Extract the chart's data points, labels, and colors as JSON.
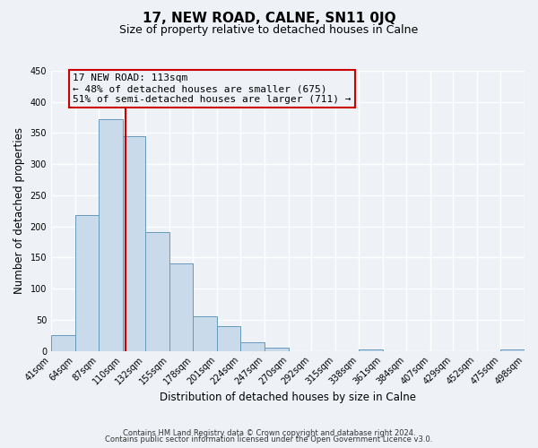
{
  "title": "17, NEW ROAD, CALNE, SN11 0JQ",
  "subtitle": "Size of property relative to detached houses in Calne",
  "xlabel": "Distribution of detached houses by size in Calne",
  "ylabel": "Number of detached properties",
  "bin_edges": [
    41,
    64,
    87,
    110,
    132,
    155,
    178,
    201,
    224,
    247,
    270,
    292,
    315,
    338,
    361,
    384,
    407,
    429,
    452,
    475,
    498
  ],
  "bar_heights": [
    25,
    218,
    372,
    345,
    191,
    141,
    55,
    40,
    14,
    6,
    0,
    0,
    0,
    2,
    0,
    0,
    0,
    0,
    0,
    2
  ],
  "bar_color": "#c9daea",
  "bar_edge_color": "#6699bb",
  "property_size": 113,
  "vline_color": "#cc0000",
  "annotation_line1": "17 NEW ROAD: 113sqm",
  "annotation_line2": "← 48% of detached houses are smaller (675)",
  "annotation_line3": "51% of semi-detached houses are larger (711) →",
  "annotation_box_edge": "#cc0000",
  "ylim": [
    0,
    450
  ],
  "yticks": [
    0,
    50,
    100,
    150,
    200,
    250,
    300,
    350,
    400,
    450
  ],
  "tick_labels": [
    "41sqm",
    "64sqm",
    "87sqm",
    "110sqm",
    "132sqm",
    "155sqm",
    "178sqm",
    "201sqm",
    "224sqm",
    "247sqm",
    "270sqm",
    "292sqm",
    "315sqm",
    "338sqm",
    "361sqm",
    "384sqm",
    "407sqm",
    "429sqm",
    "452sqm",
    "475sqm",
    "498sqm"
  ],
  "footer1": "Contains HM Land Registry data © Crown copyright and database right 2024.",
  "footer2": "Contains public sector information licensed under the Open Government Licence v3.0.",
  "background_color": "#eef2f7",
  "grid_color": "#ffffff",
  "title_fontsize": 11,
  "subtitle_fontsize": 9,
  "label_fontsize": 8.5,
  "tick_fontsize": 7,
  "annotation_fontsize": 8,
  "footer_fontsize": 6
}
